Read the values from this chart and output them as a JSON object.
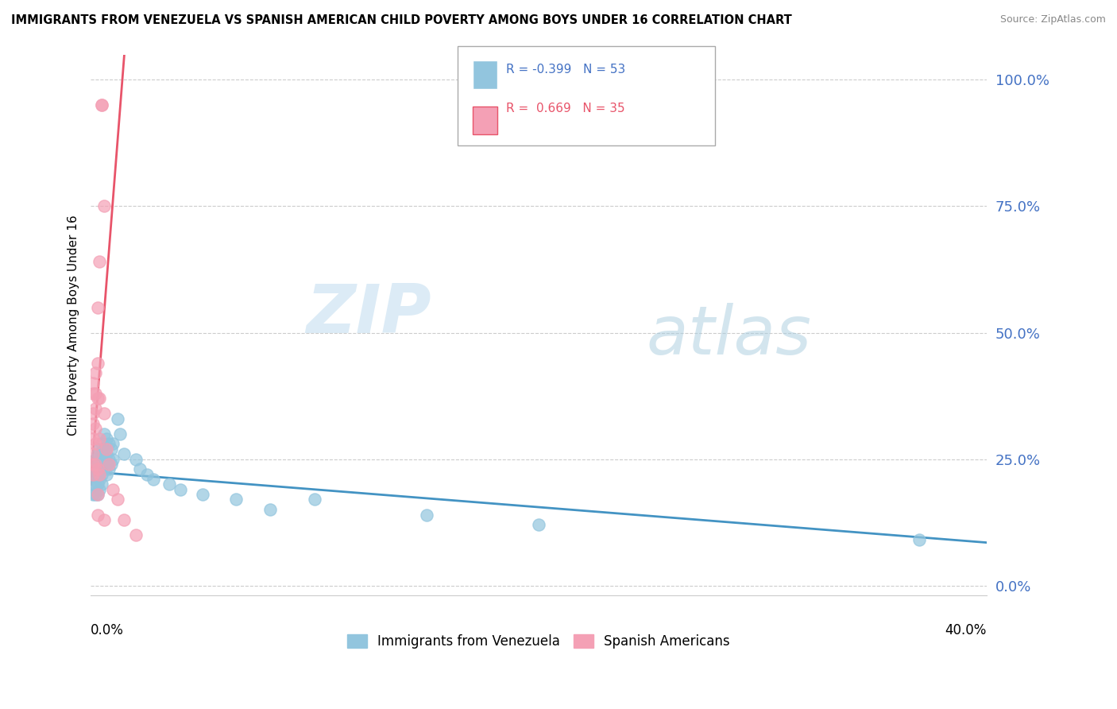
{
  "title": "IMMIGRANTS FROM VENEZUELA VS SPANISH AMERICAN CHILD POVERTY AMONG BOYS UNDER 16 CORRELATION CHART",
  "source": "Source: ZipAtlas.com",
  "ylabel": "Child Poverty Among Boys Under 16",
  "yticks": [
    "0.0%",
    "25.0%",
    "50.0%",
    "75.0%",
    "100.0%"
  ],
  "ytick_vals": [
    0.0,
    0.25,
    0.5,
    0.75,
    1.0
  ],
  "xlim": [
    0.0,
    0.4
  ],
  "ylim": [
    -0.02,
    1.05
  ],
  "series1_color": "#92c5de",
  "series2_color": "#f4a0b5",
  "trendline1_color": "#4393c3",
  "trendline2_color": "#e8546a",
  "series1_name": "Immigrants from Venezuela",
  "series2_name": "Spanish Americans",
  "blue_trendline": [
    [
      0.0,
      0.225
    ],
    [
      0.4,
      0.085
    ]
  ],
  "pink_trendline": [
    [
      0.0,
      0.2
    ],
    [
      0.015,
      1.05
    ]
  ],
  "blue_points": [
    [
      0.001,
      0.22
    ],
    [
      0.001,
      0.2
    ],
    [
      0.001,
      0.18
    ],
    [
      0.002,
      0.25
    ],
    [
      0.002,
      0.22
    ],
    [
      0.002,
      0.2
    ],
    [
      0.002,
      0.18
    ],
    [
      0.003,
      0.26
    ],
    [
      0.003,
      0.24
    ],
    [
      0.003,
      0.22
    ],
    [
      0.003,
      0.2
    ],
    [
      0.003,
      0.18
    ],
    [
      0.004,
      0.27
    ],
    [
      0.004,
      0.25
    ],
    [
      0.004,
      0.23
    ],
    [
      0.004,
      0.21
    ],
    [
      0.004,
      0.19
    ],
    [
      0.005,
      0.28
    ],
    [
      0.005,
      0.26
    ],
    [
      0.005,
      0.24
    ],
    [
      0.005,
      0.22
    ],
    [
      0.005,
      0.2
    ],
    [
      0.006,
      0.3
    ],
    [
      0.006,
      0.27
    ],
    [
      0.006,
      0.25
    ],
    [
      0.006,
      0.23
    ],
    [
      0.007,
      0.29
    ],
    [
      0.007,
      0.26
    ],
    [
      0.007,
      0.24
    ],
    [
      0.007,
      0.22
    ],
    [
      0.008,
      0.28
    ],
    [
      0.008,
      0.25
    ],
    [
      0.008,
      0.23
    ],
    [
      0.009,
      0.27
    ],
    [
      0.009,
      0.24
    ],
    [
      0.01,
      0.28
    ],
    [
      0.01,
      0.25
    ],
    [
      0.012,
      0.33
    ],
    [
      0.013,
      0.3
    ],
    [
      0.015,
      0.26
    ],
    [
      0.02,
      0.25
    ],
    [
      0.022,
      0.23
    ],
    [
      0.025,
      0.22
    ],
    [
      0.028,
      0.21
    ],
    [
      0.035,
      0.2
    ],
    [
      0.04,
      0.19
    ],
    [
      0.05,
      0.18
    ],
    [
      0.065,
      0.17
    ],
    [
      0.08,
      0.15
    ],
    [
      0.1,
      0.17
    ],
    [
      0.15,
      0.14
    ],
    [
      0.2,
      0.12
    ],
    [
      0.37,
      0.09
    ]
  ],
  "pink_points": [
    [
      0.001,
      0.4
    ],
    [
      0.001,
      0.38
    ],
    [
      0.001,
      0.34
    ],
    [
      0.001,
      0.32
    ],
    [
      0.001,
      0.29
    ],
    [
      0.001,
      0.26
    ],
    [
      0.001,
      0.24
    ],
    [
      0.001,
      0.22
    ],
    [
      0.002,
      0.42
    ],
    [
      0.002,
      0.38
    ],
    [
      0.002,
      0.35
    ],
    [
      0.002,
      0.31
    ],
    [
      0.002,
      0.28
    ],
    [
      0.002,
      0.24
    ],
    [
      0.003,
      0.55
    ],
    [
      0.003,
      0.44
    ],
    [
      0.003,
      0.37
    ],
    [
      0.003,
      0.23
    ],
    [
      0.003,
      0.18
    ],
    [
      0.003,
      0.14
    ],
    [
      0.004,
      0.64
    ],
    [
      0.004,
      0.37
    ],
    [
      0.004,
      0.29
    ],
    [
      0.004,
      0.22
    ],
    [
      0.005,
      0.95
    ],
    [
      0.005,
      0.95
    ],
    [
      0.006,
      0.75
    ],
    [
      0.006,
      0.34
    ],
    [
      0.006,
      0.13
    ],
    [
      0.007,
      0.27
    ],
    [
      0.008,
      0.24
    ],
    [
      0.01,
      0.19
    ],
    [
      0.012,
      0.17
    ],
    [
      0.015,
      0.13
    ],
    [
      0.02,
      0.1
    ]
  ]
}
